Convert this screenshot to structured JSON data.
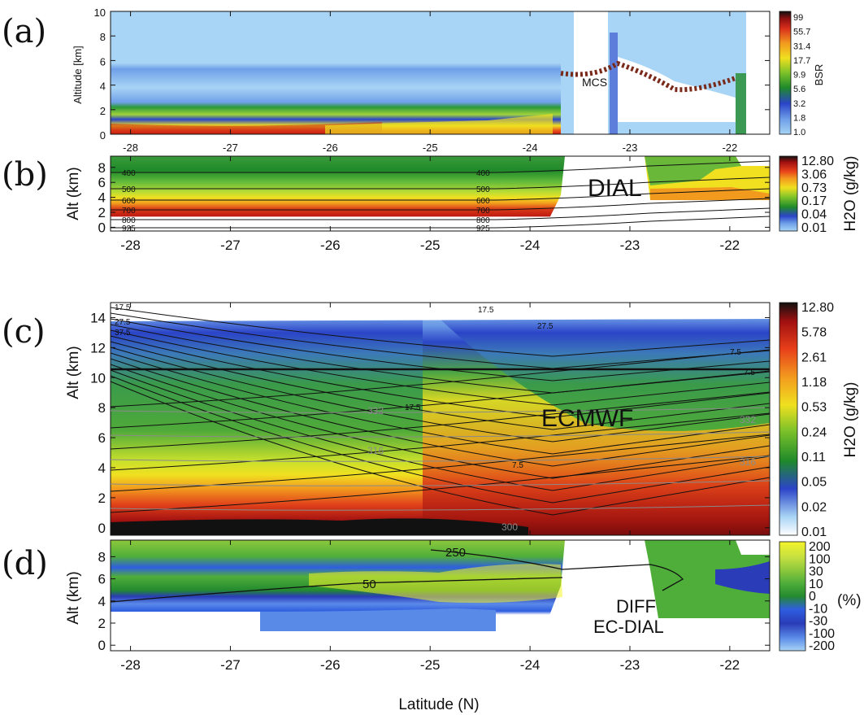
{
  "chart_data": [
    {
      "panel": "(a)",
      "type": "heatmap",
      "ylabel": "Altitude [km]",
      "xlim": [
        -28.2,
        -21.6
      ],
      "ylim": [
        0,
        10
      ],
      "x_ticks": [
        "-28",
        "-27",
        "-26",
        "-25",
        "-24",
        "-23",
        "-22"
      ],
      "y_ticks": [
        "0",
        "2",
        "4",
        "6",
        "8",
        "10"
      ],
      "colorbar": {
        "label": "BSR",
        "ticks": [
          "1.0",
          "1.8",
          "3.2",
          "5.6",
          "9.9",
          "17.7",
          "31.4",
          "55.7",
          "99"
        ],
        "colors": [
          "#a8d4f5",
          "#6fa0e8",
          "#2b44c8",
          "#1f8a2a",
          "#7dc22a",
          "#f0e020",
          "#f29a1e",
          "#d9301c",
          "#111111"
        ]
      },
      "annotations": [
        "MCS"
      ]
    },
    {
      "panel": "(b)",
      "type": "heatmap",
      "ylabel": "Alt (km)",
      "xlim": [
        -28.2,
        -21.6
      ],
      "ylim": [
        -0.5,
        9.5
      ],
      "x_ticks": [
        "-28",
        "-27",
        "-26",
        "-25",
        "-24",
        "-23",
        "-22"
      ],
      "y_ticks": [
        "0",
        "2",
        "4",
        "6",
        "8"
      ],
      "colorbar": {
        "label": "H2O (g/kg)",
        "ticks": [
          "0.01",
          "0.04",
          "0.17",
          "0.73",
          "3.06",
          "12.80"
        ],
        "colors": [
          "#a8d4f5",
          "#2b44c8",
          "#1f8a2a",
          "#f0e020",
          "#f05a14",
          "#c01a12",
          "#111111"
        ]
      },
      "contours": {
        "levels_hPa": [
          "925",
          "800",
          "700",
          "600",
          "500",
          "400"
        ]
      },
      "annotations": [
        "DIAL"
      ]
    },
    {
      "panel": "(c)",
      "type": "heatmap",
      "ylabel": "Alt (km)",
      "xlim": [
        -28.2,
        -21.6
      ],
      "ylim": [
        -0.5,
        15
      ],
      "x_ticks": [
        "-28",
        "-27",
        "-26",
        "-25",
        "-24",
        "-23",
        "-22"
      ],
      "y_ticks": [
        "0",
        "2",
        "4",
        "6",
        "8",
        "10",
        "12",
        "14"
      ],
      "colorbar": {
        "label": "H2O (g/kg)",
        "ticks": [
          "0.01",
          "0.02",
          "0.05",
          "0.11",
          "0.24",
          "0.53",
          "1.18",
          "2.61",
          "5.78",
          "12.80"
        ],
        "colors": [
          "#ffffff",
          "#a8d4f5",
          "#2b44c8",
          "#1f8a2a",
          "#7dc22a",
          "#f0e020",
          "#f29a1e",
          "#e8401a",
          "#a01010",
          "#111111"
        ]
      },
      "contours": {
        "black_labels": [
          "17.5",
          "27.5",
          "37.5",
          "17.5",
          "7.5",
          "7.5",
          "17.5",
          "27.5",
          "7.5"
        ],
        "grey_labels": [
          "332",
          "316",
          "300",
          "332",
          "316"
        ]
      },
      "annotations": [
        "ECMWF"
      ]
    },
    {
      "panel": "(d)",
      "type": "heatmap",
      "xlabel": "Latitude (N)",
      "ylabel": "Alt (km)",
      "xlim": [
        -28.2,
        -21.6
      ],
      "ylim": [
        -0.5,
        9.5
      ],
      "x_ticks": [
        "-28",
        "-27",
        "-26",
        "-25",
        "-24",
        "-23",
        "-22"
      ],
      "y_ticks": [
        "0",
        "2",
        "4",
        "6",
        "8"
      ],
      "colorbar": {
        "label": "(%)",
        "ticks": [
          "200",
          "100",
          "30",
          "10",
          "0",
          "-10",
          "-30",
          "-100",
          "-200"
        ],
        "colors": [
          "#f4f42a",
          "#c6e040",
          "#8cc83c",
          "#4fae3a",
          "#238a2e",
          "#2f5ee0",
          "#2a3cb8",
          "#5a8ae8",
          "#a8d4f5"
        ]
      },
      "contours": {
        "labels": [
          "250",
          "50"
        ]
      },
      "annotations": [
        "DIFF",
        "EC-DIAL"
      ]
    }
  ]
}
